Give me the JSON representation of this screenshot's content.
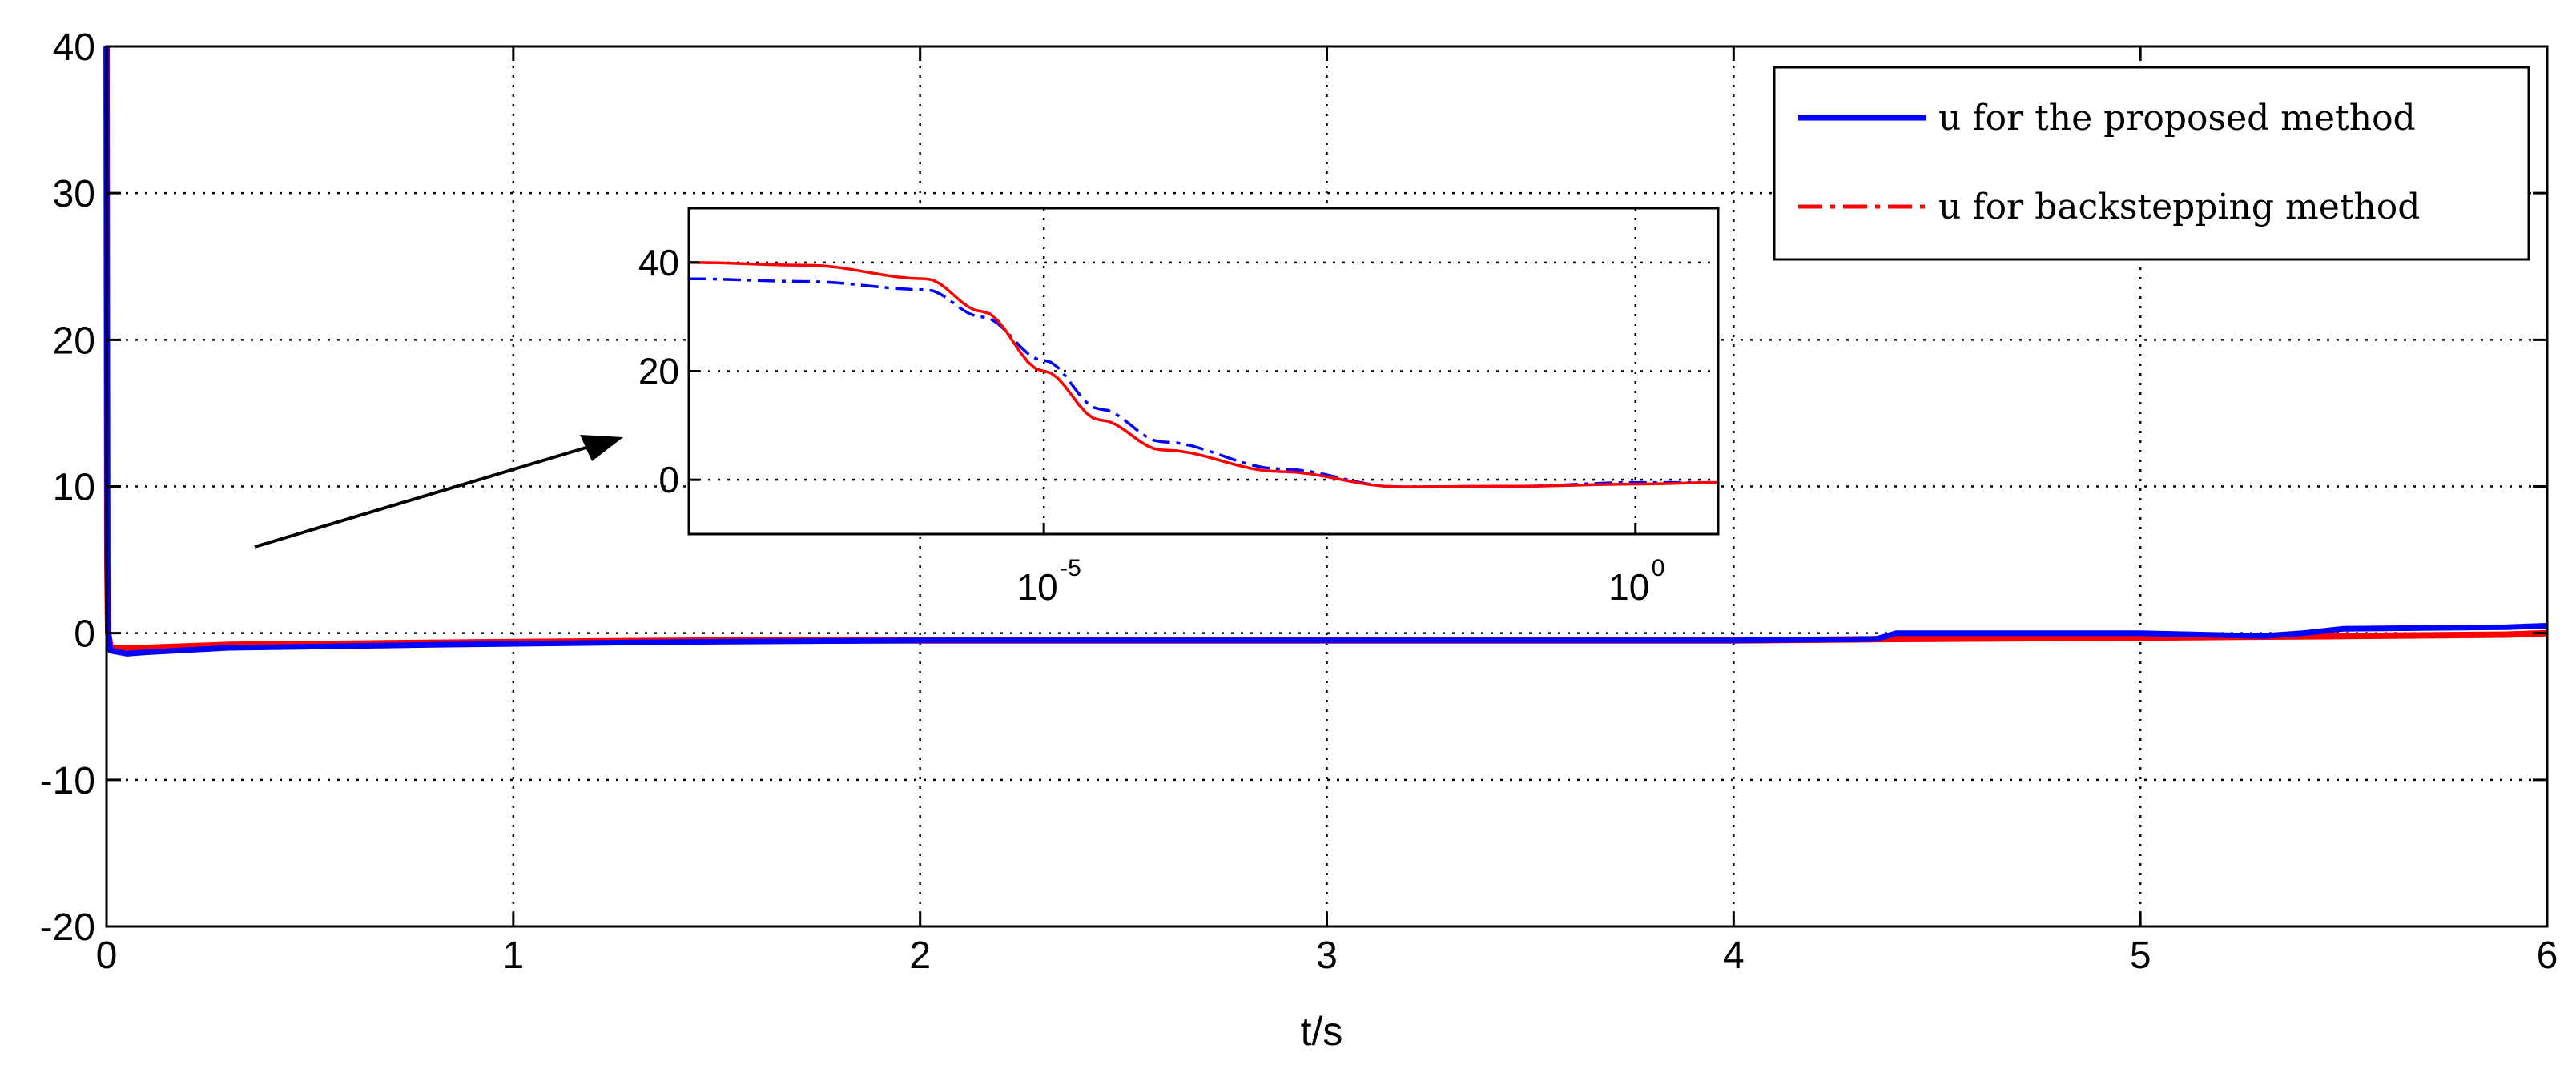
{
  "chart_data": [
    {
      "type": "line",
      "xlabel": "t/s",
      "ylabel": "",
      "xlim": [
        0,
        6
      ],
      "ylim": [
        -20,
        40
      ],
      "x_ticks": [
        "0",
        "1",
        "2",
        "3",
        "4",
        "5",
        "6"
      ],
      "y_ticks": [
        "40",
        "30",
        "20",
        "10",
        "0",
        "-10",
        "-20"
      ],
      "grid": true,
      "legend_position": "top-right",
      "series": [
        {
          "name": "u for the proposed method",
          "color": "#0000ff",
          "style": "solid",
          "x": [
            0,
            0.001,
            0.002,
            0.004,
            0.01,
            0.05,
            0.1,
            0.3,
            0.8,
            1.4,
            2.0,
            3.0,
            4.0,
            4.35,
            4.4,
            5.0,
            5.3,
            5.4,
            5.5,
            5.9,
            6.0
          ],
          "y": [
            40,
            20,
            5,
            0,
            -1.2,
            -1.4,
            -1.3,
            -1.0,
            -0.8,
            -0.6,
            -0.5,
            -0.5,
            -0.5,
            -0.4,
            0,
            0,
            -0.2,
            0,
            0.3,
            0.4,
            0.5
          ]
        },
        {
          "name": "u for backstepping method",
          "color": "#ff0000",
          "style": "dash-dot",
          "x": [
            0,
            0.001,
            0.002,
            0.004,
            0.01,
            0.05,
            0.1,
            0.3,
            1.0,
            1.5,
            2.0,
            3.0,
            4.0,
            4.4,
            5.0,
            5.5,
            5.9,
            6.0
          ],
          "y": [
            40,
            20,
            5,
            0,
            -1.0,
            -1.0,
            -1.0,
            -0.8,
            -0.6,
            -0.5,
            -0.5,
            -0.5,
            -0.5,
            -0.4,
            -0.3,
            -0.2,
            -0.1,
            0
          ]
        }
      ]
    },
    {
      "type": "line",
      "role": "inset",
      "x_scale": "log",
      "x_ticks": [
        "10",
        "10"
      ],
      "x_tick_exponents": [
        "-5",
        "0"
      ],
      "x_tick_values": [
        1e-05,
        1
      ],
      "y_ticks": [
        "40",
        "20",
        "0"
      ],
      "xlim": [
        1e-08,
        5
      ],
      "ylim": [
        -10,
        50
      ],
      "grid": true,
      "series": [
        {
          "name": "u for the proposed method",
          "color": "#0000ff",
          "style": "dash-dot",
          "x": [
            1e-08,
            1e-07,
            1e-06,
            3e-06,
            1e-05,
            3e-05,
            0.0001,
            0.001,
            0.01,
            0.1,
            1,
            5
          ],
          "y": [
            37,
            36.5,
            35,
            30,
            22,
            13,
            7,
            2,
            -1.3,
            -1.2,
            -0.5,
            -0.5
          ]
        },
        {
          "name": "u for backstepping method",
          "color": "#ff0000",
          "style": "solid",
          "x": [
            1e-08,
            1e-07,
            1e-06,
            3e-06,
            1e-05,
            3e-05,
            0.0001,
            0.001,
            0.01,
            0.1,
            1,
            5
          ],
          "y": [
            40,
            39.5,
            37,
            31,
            20,
            11,
            5.5,
            1.5,
            -1.3,
            -1.2,
            -0.8,
            -0.5
          ]
        }
      ]
    }
  ]
}
